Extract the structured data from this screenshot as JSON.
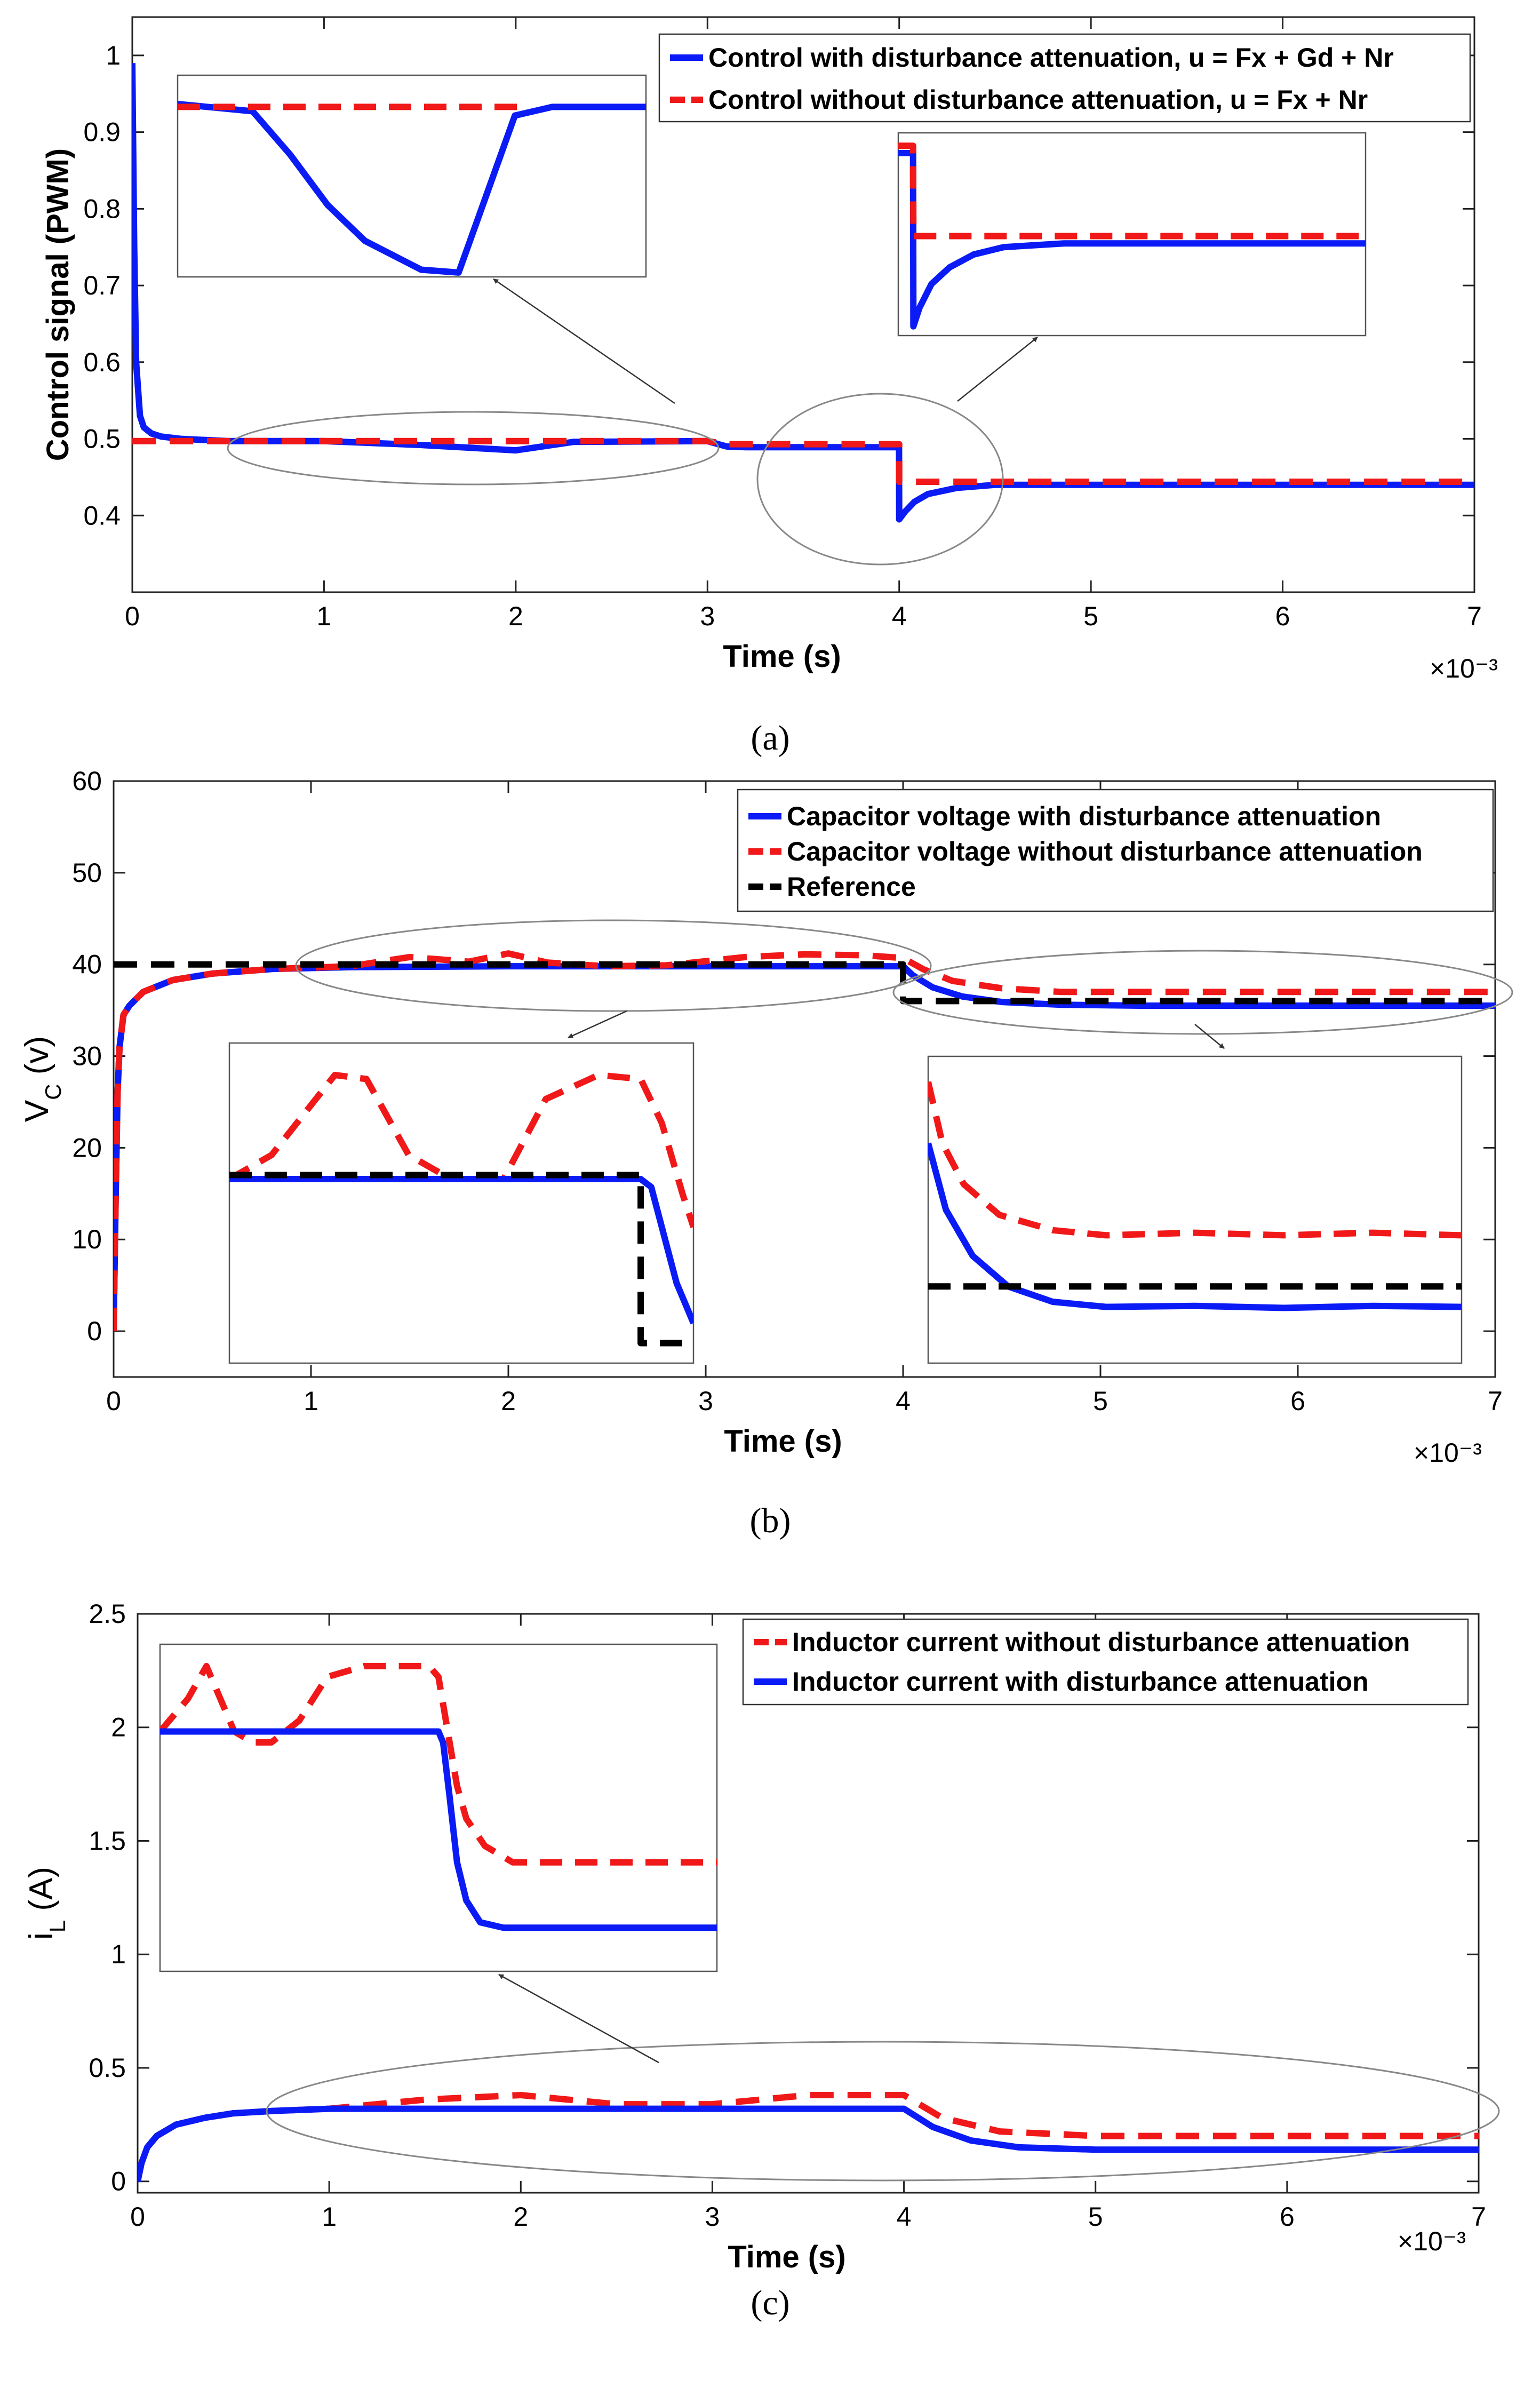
{
  "colors": {
    "blue": "#0a1bf5",
    "red": "#f01818",
    "black": "#000000",
    "annotation": "#777777"
  },
  "chart_data": [
    {
      "type": "line",
      "panel": "a",
      "caption": "(a)",
      "xlabel": "Time  (s)",
      "ylabel": "Control signal (PWM)",
      "x_multiplier": "×10⁻³",
      "xlim": [
        0,
        7
      ],
      "ylim": [
        0.3,
        1.05
      ],
      "x_ticks": [
        "0",
        "1",
        "2",
        "3",
        "4",
        "5",
        "6",
        "7"
      ],
      "y_ticks": [
        "0.4",
        "0.5",
        "0.6",
        "0.7",
        "0.8",
        "0.9",
        "1"
      ],
      "legend": [
        "Control with disturbance attenuation, u = Fx + Gd + Nr",
        "Control without disturbance attenuation, u = Fx + Nr"
      ],
      "series": [
        {
          "name": "Control with disturbance attenuation, u = Fx + Gd + Nr",
          "color": "blue",
          "style": "solid",
          "x": [
            0,
            0.01,
            0.02,
            0.04,
            0.06,
            0.1,
            0.15,
            0.25,
            0.5,
            1.0,
            1.5,
            2.0,
            2.3,
            3.0,
            3.1,
            3.2,
            3.9,
            3.999,
            4.0,
            4.03,
            4.08,
            4.15,
            4.3,
            4.5,
            5.0,
            6.0,
            7.0
          ],
          "values": [
            0.99,
            0.75,
            0.6,
            0.53,
            0.515,
            0.507,
            0.503,
            0.5,
            0.497,
            0.497,
            0.492,
            0.485,
            0.496,
            0.497,
            0.49,
            0.489,
            0.489,
            0.489,
            0.395,
            0.405,
            0.418,
            0.428,
            0.436,
            0.44,
            0.44,
            0.44,
            0.44
          ]
        },
        {
          "name": "Control without disturbance attenuation, u = Fx + Nr",
          "color": "red",
          "style": "dashed",
          "x": [
            0,
            3.0,
            3.1,
            4.0,
            4.0,
            7.0
          ],
          "values": [
            0.497,
            0.497,
            0.493,
            0.493,
            0.444,
            0.444
          ]
        }
      ],
      "insets": [
        {
          "xlim": [
            0.5,
            3.0
          ],
          "ylim": [
            0.485,
            0.499
          ],
          "series": [
            {
              "color": "blue",
              "style": "solid",
              "x": [
                0.5,
                0.9,
                1.1,
                1.3,
                1.5,
                1.8,
                2.0,
                2.3,
                2.5,
                3.0
              ],
              "values": [
                0.497,
                0.4965,
                0.4935,
                0.49,
                0.4875,
                0.4855,
                0.4853,
                0.4962,
                0.4968,
                0.4968
              ]
            },
            {
              "color": "red",
              "style": "dashed",
              "x": [
                0.5,
                2.35
              ],
              "values": [
                0.4968,
                0.4968
              ]
            }
          ]
        },
        {
          "xlim": [
            3.95,
            5.5
          ],
          "ylim": [
            0.39,
            0.5
          ],
          "series": [
            {
              "color": "blue",
              "style": "solid",
              "x": [
                3.95,
                3.999,
                4.0,
                4.02,
                4.06,
                4.12,
                4.2,
                4.3,
                4.5,
                4.8,
                5.5
              ],
              "values": [
                0.489,
                0.489,
                0.395,
                0.405,
                0.418,
                0.427,
                0.434,
                0.438,
                0.44,
                0.44,
                0.44
              ]
            },
            {
              "color": "red",
              "style": "dashed",
              "x": [
                3.95,
                3.999,
                4.0,
                5.5
              ],
              "values": [
                0.493,
                0.493,
                0.444,
                0.444
              ]
            }
          ]
        }
      ]
    },
    {
      "type": "line",
      "panel": "b",
      "caption": "(b)",
      "xlabel": "Time (s)",
      "ylabel_main": "V",
      "ylabel_sub": "C",
      "ylabel_unit": " (v)",
      "x_multiplier": "×10⁻³",
      "xlim": [
        0,
        7
      ],
      "ylim": [
        -5,
        60
      ],
      "x_ticks": [
        "0",
        "1",
        "2",
        "3",
        "4",
        "5",
        "6",
        "7"
      ],
      "y_ticks": [
        "0",
        "10",
        "20",
        "30",
        "40",
        "50",
        "60"
      ],
      "legend": [
        "Capacitor voltage with disturbance attenuation",
        "Capacitor voltage without disturbance attenuation",
        "Reference"
      ],
      "series": [
        {
          "name": "Capacitor voltage with disturbance attenuation",
          "color": "blue",
          "style": "solid",
          "x": [
            0,
            0.01,
            0.02,
            0.03,
            0.05,
            0.08,
            0.15,
            0.3,
            0.5,
            0.8,
            1.2,
            2.0,
            4.0,
            4.05,
            4.15,
            4.3,
            4.5,
            4.8,
            5.2,
            6.0,
            7.0
          ],
          "values": [
            0,
            14,
            26,
            31,
            34.5,
            35.5,
            37,
            38.3,
            39,
            39.5,
            39.7,
            39.8,
            39.8,
            38.8,
            37.5,
            36.5,
            35.9,
            35.6,
            35.5,
            35.5,
            35.5
          ]
        },
        {
          "name": "Capacitor voltage without disturbance attenuation",
          "color": "red",
          "style": "dashed",
          "x": [
            0,
            0.01,
            0.02,
            0.03,
            0.05,
            0.08,
            0.15,
            0.3,
            0.5,
            0.8,
            1.2,
            1.5,
            1.8,
            2.0,
            2.2,
            2.5,
            2.8,
            3.2,
            3.5,
            3.8,
            4.0,
            4.1,
            4.25,
            4.5,
            4.8,
            5.5,
            7.0
          ],
          "values": [
            0,
            14,
            26,
            31,
            34.5,
            35.5,
            37,
            38.3,
            39,
            39.5,
            39.8,
            40.8,
            40.3,
            41.2,
            40.2,
            39.8,
            39.9,
            40.8,
            41.1,
            41.0,
            40.7,
            39.5,
            38.2,
            37.4,
            37.0,
            37.0,
            37.0
          ]
        },
        {
          "name": "Reference",
          "color": "black",
          "style": "dashed",
          "x": [
            0,
            4.0,
            4.0,
            7.0
          ],
          "values": [
            40,
            40,
            36,
            36
          ]
        }
      ],
      "insets": [
        {
          "xlim": [
            1.0,
            3.2
          ],
          "ylim": [
            37.5,
            41.5
          ],
          "series": [
            {
              "color": "red",
              "style": "dashed",
              "x": [
                1.0,
                1.2,
                1.5,
                1.65,
                1.85,
                2.05,
                2.3,
                2.5,
                2.75,
                2.95,
                3.05,
                3.15,
                3.2
              ],
              "values": [
                39.8,
                40.1,
                41.1,
                41.05,
                40.1,
                39.8,
                39.8,
                40.8,
                41.1,
                41.05,
                40.5,
                39.6,
                39.2
              ]
            },
            {
              "color": "blue",
              "style": "solid",
              "x": [
                1.0,
                2.95,
                3.0,
                3.05,
                3.12,
                3.2
              ],
              "values": [
                39.8,
                39.8,
                39.7,
                39.2,
                38.5,
                38.0
              ]
            },
            {
              "color": "black",
              "style": "dashed",
              "x": [
                1.0,
                2.95,
                2.95,
                3.2
              ],
              "values": [
                39.85,
                39.85,
                37.75,
                37.75
              ]
            }
          ]
        },
        {
          "xlim": [
            4.0,
            7.0
          ],
          "ylim": [
            34.5,
            40.5
          ],
          "series": [
            {
              "color": "red",
              "style": "dashed",
              "x": [
                4.0,
                4.08,
                4.2,
                4.4,
                4.7,
                5.0,
                5.5,
                6.0,
                6.5,
                7.0
              ],
              "values": [
                40.0,
                38.8,
                38.0,
                37.4,
                37.1,
                37.0,
                37.05,
                37.0,
                37.05,
                37.0
              ]
            },
            {
              "color": "blue",
              "style": "solid",
              "x": [
                4.0,
                4.1,
                4.25,
                4.45,
                4.7,
                5.0,
                5.5,
                6.0,
                6.5,
                7.0
              ],
              "values": [
                38.8,
                37.5,
                36.6,
                36.0,
                35.7,
                35.6,
                35.62,
                35.58,
                35.62,
                35.6
              ]
            },
            {
              "color": "black",
              "style": "dashed",
              "x": [
                4.0,
                7.0
              ],
              "values": [
                36.0,
                36.0
              ]
            }
          ]
        }
      ]
    },
    {
      "type": "line",
      "panel": "c",
      "caption": "(c)",
      "xlabel": "Time (s)",
      "ylabel_main": "i",
      "ylabel_sub": "L",
      "ylabel_unit": " (A)",
      "x_multiplier": "×10⁻³",
      "xlim": [
        0,
        7
      ],
      "ylim": [
        -0.05,
        2.5
      ],
      "x_ticks": [
        "0",
        "1",
        "2",
        "3",
        "4",
        "5",
        "6",
        "7"
      ],
      "y_ticks": [
        "0",
        "0.5",
        "1",
        "1.5",
        "2",
        "2.5"
      ],
      "legend": [
        "Inductor current without disturbance attenuation",
        "Inductor current with disturbance attenuation"
      ],
      "series": [
        {
          "name": "Inductor current without disturbance attenuation",
          "color": "red",
          "style": "dashed",
          "x": [
            0,
            0.02,
            0.05,
            0.1,
            0.2,
            0.35,
            0.5,
            0.7,
            1.0,
            1.5,
            2.0,
            2.5,
            3.0,
            3.5,
            4.0,
            4.2,
            4.5,
            5.0,
            6.0,
            7.0
          ],
          "values": [
            0,
            0.08,
            0.15,
            0.2,
            0.25,
            0.28,
            0.3,
            0.31,
            0.32,
            0.36,
            0.38,
            0.34,
            0.34,
            0.38,
            0.38,
            0.28,
            0.22,
            0.2,
            0.2,
            0.2
          ]
        },
        {
          "name": "Inductor current with disturbance attenuation",
          "color": "blue",
          "style": "solid",
          "x": [
            0,
            0.02,
            0.05,
            0.1,
            0.2,
            0.35,
            0.5,
            0.7,
            1.0,
            2.0,
            3.0,
            4.0,
            4.15,
            4.35,
            4.6,
            5.0,
            6.0,
            7.0
          ],
          "values": [
            0,
            0.08,
            0.15,
            0.2,
            0.25,
            0.28,
            0.3,
            0.31,
            0.32,
            0.32,
            0.32,
            0.32,
            0.24,
            0.18,
            0.15,
            0.14,
            0.14,
            0.14
          ]
        }
      ],
      "insets": [
        {
          "xlim": [
            1.0,
            7.0
          ],
          "ylim": [
            0.1,
            0.4
          ],
          "series": [
            {
              "color": "red",
              "style": "dashed",
              "x": [
                1.0,
                1.3,
                1.5,
                1.8,
                2.0,
                2.2,
                2.5,
                2.8,
                3.2,
                3.6,
                3.9,
                4.0,
                4.1,
                4.2,
                4.3,
                4.5,
                4.8,
                5.5,
                7.0
              ],
              "values": [
                0.32,
                0.35,
                0.38,
                0.32,
                0.31,
                0.31,
                0.33,
                0.37,
                0.38,
                0.38,
                0.38,
                0.37,
                0.32,
                0.27,
                0.24,
                0.215,
                0.2,
                0.2,
                0.2
              ]
            },
            {
              "color": "blue",
              "style": "solid",
              "x": [
                1.0,
                4.0,
                4.05,
                4.12,
                4.2,
                4.3,
                4.45,
                4.7,
                5.2,
                7.0
              ],
              "values": [
                0.32,
                0.32,
                0.31,
                0.26,
                0.2,
                0.165,
                0.145,
                0.14,
                0.14,
                0.14
              ]
            }
          ]
        }
      ]
    }
  ]
}
